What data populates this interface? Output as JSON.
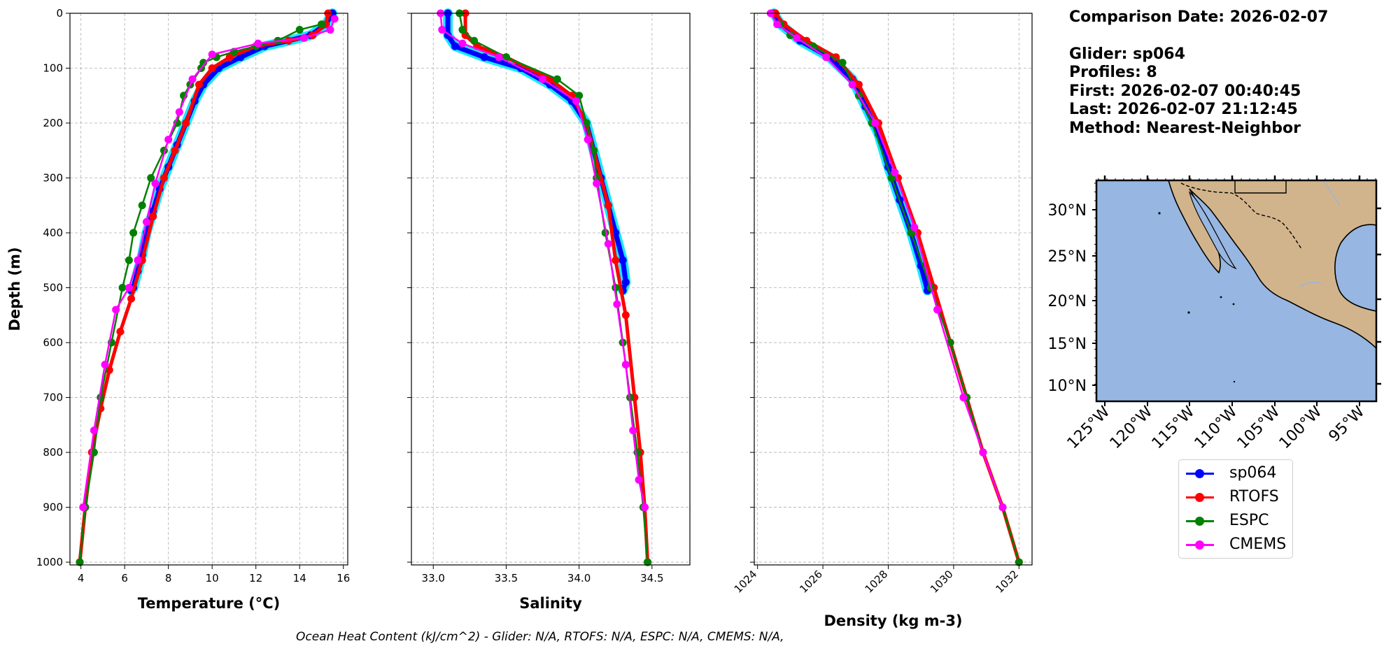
{
  "info": {
    "comparison_date": "Comparison Date: 2026-02-07",
    "glider": "Glider: sp064",
    "profiles": "Profiles: 8",
    "first": "First: 2026-02-07 00:40:45",
    "last": "Last: 2026-02-07 21:12:45",
    "method": "Method: Nearest-Neighbor"
  },
  "legend": {
    "items": [
      {
        "label": "sp064",
        "color": "#0000ff"
      },
      {
        "label": "RTOFS",
        "color": "#ff0000"
      },
      {
        "label": "ESPC",
        "color": "#008000"
      },
      {
        "label": "CMEMS",
        "color": "#ff00ff"
      }
    ]
  },
  "footer": "Ocean Heat Content (kJ/cm^2) - Glider: N/A,  RTOFS: N/A,  ESPC: N/A,  CMEMS: N/A,",
  "colors": {
    "glider_band": "#00e5ff",
    "ocean": "#97b6e1",
    "land": "#d2b48c",
    "grid": "#b0b0b0"
  },
  "chart_data": [
    {
      "type": "line",
      "xlabel": "Temperature (°C)",
      "ylabel": "Depth (m)",
      "xlim": [
        3.5,
        16.2
      ],
      "ylim": [
        1005,
        0
      ],
      "xticks": [
        4,
        6,
        8,
        10,
        12,
        14,
        16
      ],
      "xtick_labels": [
        "4",
        "6",
        "8",
        "10",
        "12",
        "14",
        "16"
      ],
      "yticks": [
        0,
        100,
        200,
        300,
        400,
        500,
        600,
        700,
        800,
        900,
        1000
      ],
      "ytick_labels": [
        "0",
        "100",
        "200",
        "300",
        "400",
        "500",
        "600",
        "700",
        "800",
        "900",
        "1000"
      ],
      "grid": true,
      "series": [
        {
          "name": "sp064",
          "color": "#0000ff",
          "x": [
            15.5,
            15.2,
            14.5,
            13.5,
            12.4,
            11.3,
            10.3,
            9.6,
            9.2,
            8.8,
            8.4,
            8.0,
            7.6,
            7.3,
            7.0,
            6.8,
            6.6,
            6.4,
            6.3
          ],
          "y": [
            0,
            20,
            40,
            50,
            60,
            80,
            100,
            130,
            160,
            200,
            240,
            280,
            320,
            360,
            400,
            440,
            470,
            500,
            505
          ]
        },
        {
          "name": "RTOFS",
          "color": "#ff0000",
          "x": [
            15.3,
            15.2,
            14.6,
            13.5,
            12.0,
            10.8,
            10.0,
            9.4,
            8.8,
            8.3,
            7.8,
            7.3,
            6.8,
            6.3,
            5.8,
            5.3,
            4.9,
            4.5,
            4.2,
            3.95
          ],
          "y": [
            0,
            20,
            40,
            50,
            60,
            80,
            100,
            130,
            200,
            250,
            300,
            370,
            450,
            520,
            580,
            650,
            720,
            800,
            900,
            1000
          ]
        },
        {
          "name": "ESPC",
          "color": "#008000",
          "x": [
            15.0,
            14.0,
            13.0,
            12.0,
            11.0,
            10.2,
            9.6,
            9.5,
            9.0,
            8.7,
            8.4,
            7.8,
            7.2,
            6.8,
            6.4,
            6.2,
            5.9,
            5.4,
            4.9,
            4.6,
            4.2,
            3.95
          ],
          "y": [
            20,
            30,
            50,
            60,
            70,
            80,
            90,
            100,
            130,
            150,
            200,
            250,
            300,
            350,
            400,
            450,
            500,
            600,
            700,
            800,
            900,
            1000
          ]
        },
        {
          "name": "CMEMS",
          "color": "#ff00ff",
          "x": [
            15.6,
            15.4,
            14.2,
            12.1,
            10.0,
            9.1,
            8.5,
            8.0,
            7.4,
            7.0,
            6.6,
            6.2,
            5.6,
            5.1,
            4.6,
            4.1
          ],
          "y": [
            10,
            30,
            45,
            55,
            75,
            120,
            180,
            230,
            310,
            380,
            450,
            500,
            540,
            640,
            760,
            900
          ]
        }
      ]
    },
    {
      "type": "line",
      "xlabel": "Salinity",
      "ylabel": "",
      "xlim": [
        32.85,
        34.76
      ],
      "ylim": [
        1005,
        0
      ],
      "xticks": [
        33.0,
        33.5,
        34.0,
        34.5
      ],
      "xtick_labels": [
        "33.0",
        "33.5",
        "34.0",
        "34.5"
      ],
      "yticks": [
        0,
        100,
        200,
        300,
        400,
        500,
        600,
        700,
        800,
        900,
        1000
      ],
      "grid": true,
      "series": [
        {
          "name": "sp064",
          "color": "#0000ff",
          "x": [
            33.1,
            33.1,
            33.15,
            33.35,
            33.6,
            33.8,
            33.95,
            34.05,
            34.1,
            34.15,
            34.2,
            34.25,
            34.3,
            34.32,
            34.3
          ],
          "y": [
            0,
            40,
            60,
            80,
            100,
            130,
            160,
            200,
            250,
            300,
            350,
            400,
            450,
            490,
            505
          ]
        },
        {
          "name": "RTOFS",
          "color": "#ff0000",
          "x": [
            33.22,
            33.22,
            33.3,
            33.5,
            33.8,
            33.95,
            34.05,
            34.1,
            34.2,
            34.25,
            34.32,
            34.38,
            34.42,
            34.45,
            34.47
          ],
          "y": [
            0,
            40,
            60,
            80,
            120,
            150,
            200,
            250,
            350,
            450,
            550,
            700,
            800,
            900,
            1000
          ]
        },
        {
          "name": "ESPC",
          "color": "#008000",
          "x": [
            33.18,
            33.2,
            33.28,
            33.5,
            33.85,
            34.0,
            34.05,
            34.1,
            34.12,
            34.18,
            34.25,
            34.3,
            34.35,
            34.4,
            34.44,
            34.47
          ],
          "y": [
            0,
            30,
            50,
            80,
            120,
            150,
            200,
            250,
            300,
            400,
            500,
            600,
            700,
            800,
            900,
            1000
          ]
        },
        {
          "name": "CMEMS",
          "color": "#ff00ff",
          "x": [
            33.05,
            33.06,
            33.2,
            33.45,
            33.75,
            33.98,
            34.06,
            34.12,
            34.2,
            34.26,
            34.32,
            34.37,
            34.41,
            34.45
          ],
          "y": [
            0,
            30,
            55,
            80,
            120,
            160,
            230,
            310,
            420,
            530,
            640,
            760,
            850,
            900
          ]
        }
      ]
    },
    {
      "type": "line",
      "xlabel": "Density (kg m-3)",
      "ylabel": "",
      "xlim": [
        1023.9,
        1032.4
      ],
      "ylim": [
        1005,
        0
      ],
      "xticks": [
        1024,
        1026,
        1028,
        1030,
        1032
      ],
      "xtick_labels": [
        "1024",
        "1026",
        "1028",
        "1030",
        "1032"
      ],
      "yticks": [
        0,
        100,
        200,
        300,
        400,
        500,
        600,
        700,
        800,
        900,
        1000
      ],
      "grid": true,
      "series": [
        {
          "name": "sp064",
          "color": "#0000ff",
          "x": [
            1024.5,
            1024.7,
            1025.3,
            1026.2,
            1026.9,
            1027.3,
            1027.7,
            1028.0,
            1028.35,
            1028.7,
            1029.0,
            1029.2
          ],
          "y": [
            0,
            20,
            50,
            80,
            120,
            170,
            220,
            280,
            340,
            400,
            460,
            505
          ]
        },
        {
          "name": "RTOFS",
          "color": "#ff0000",
          "x": [
            1024.55,
            1024.8,
            1025.5,
            1026.4,
            1027.1,
            1027.7,
            1028.3,
            1028.9,
            1029.4,
            1029.9,
            1030.4,
            1030.9,
            1031.5,
            1032.0
          ],
          "y": [
            0,
            20,
            50,
            80,
            130,
            200,
            300,
            400,
            500,
            600,
            700,
            800,
            900,
            1000
          ]
        },
        {
          "name": "ESPC",
          "color": "#008000",
          "x": [
            1024.7,
            1025.0,
            1025.7,
            1026.6,
            1027.1,
            1027.5,
            1028.1,
            1028.7,
            1029.3,
            1029.9,
            1030.4,
            1030.9,
            1031.5,
            1032.0
          ],
          "y": [
            20,
            40,
            60,
            90,
            150,
            200,
            300,
            400,
            500,
            600,
            700,
            800,
            900,
            1000
          ]
        },
        {
          "name": "CMEMS",
          "color": "#ff00ff",
          "x": [
            1024.4,
            1024.6,
            1025.2,
            1026.1,
            1026.9,
            1027.6,
            1028.2,
            1028.8,
            1029.5,
            1030.3,
            1030.9,
            1031.5
          ],
          "y": [
            0,
            20,
            45,
            80,
            130,
            200,
            290,
            390,
            540,
            700,
            800,
            900
          ]
        }
      ]
    }
  ],
  "map": {
    "lat_labels": [
      "30°N",
      "25°N",
      "20°N",
      "15°N",
      "10°N"
    ],
    "lon_labels": [
      "125°W",
      "120°W",
      "115°W",
      "110°W",
      "105°W",
      "100°W",
      "95°W"
    ]
  }
}
